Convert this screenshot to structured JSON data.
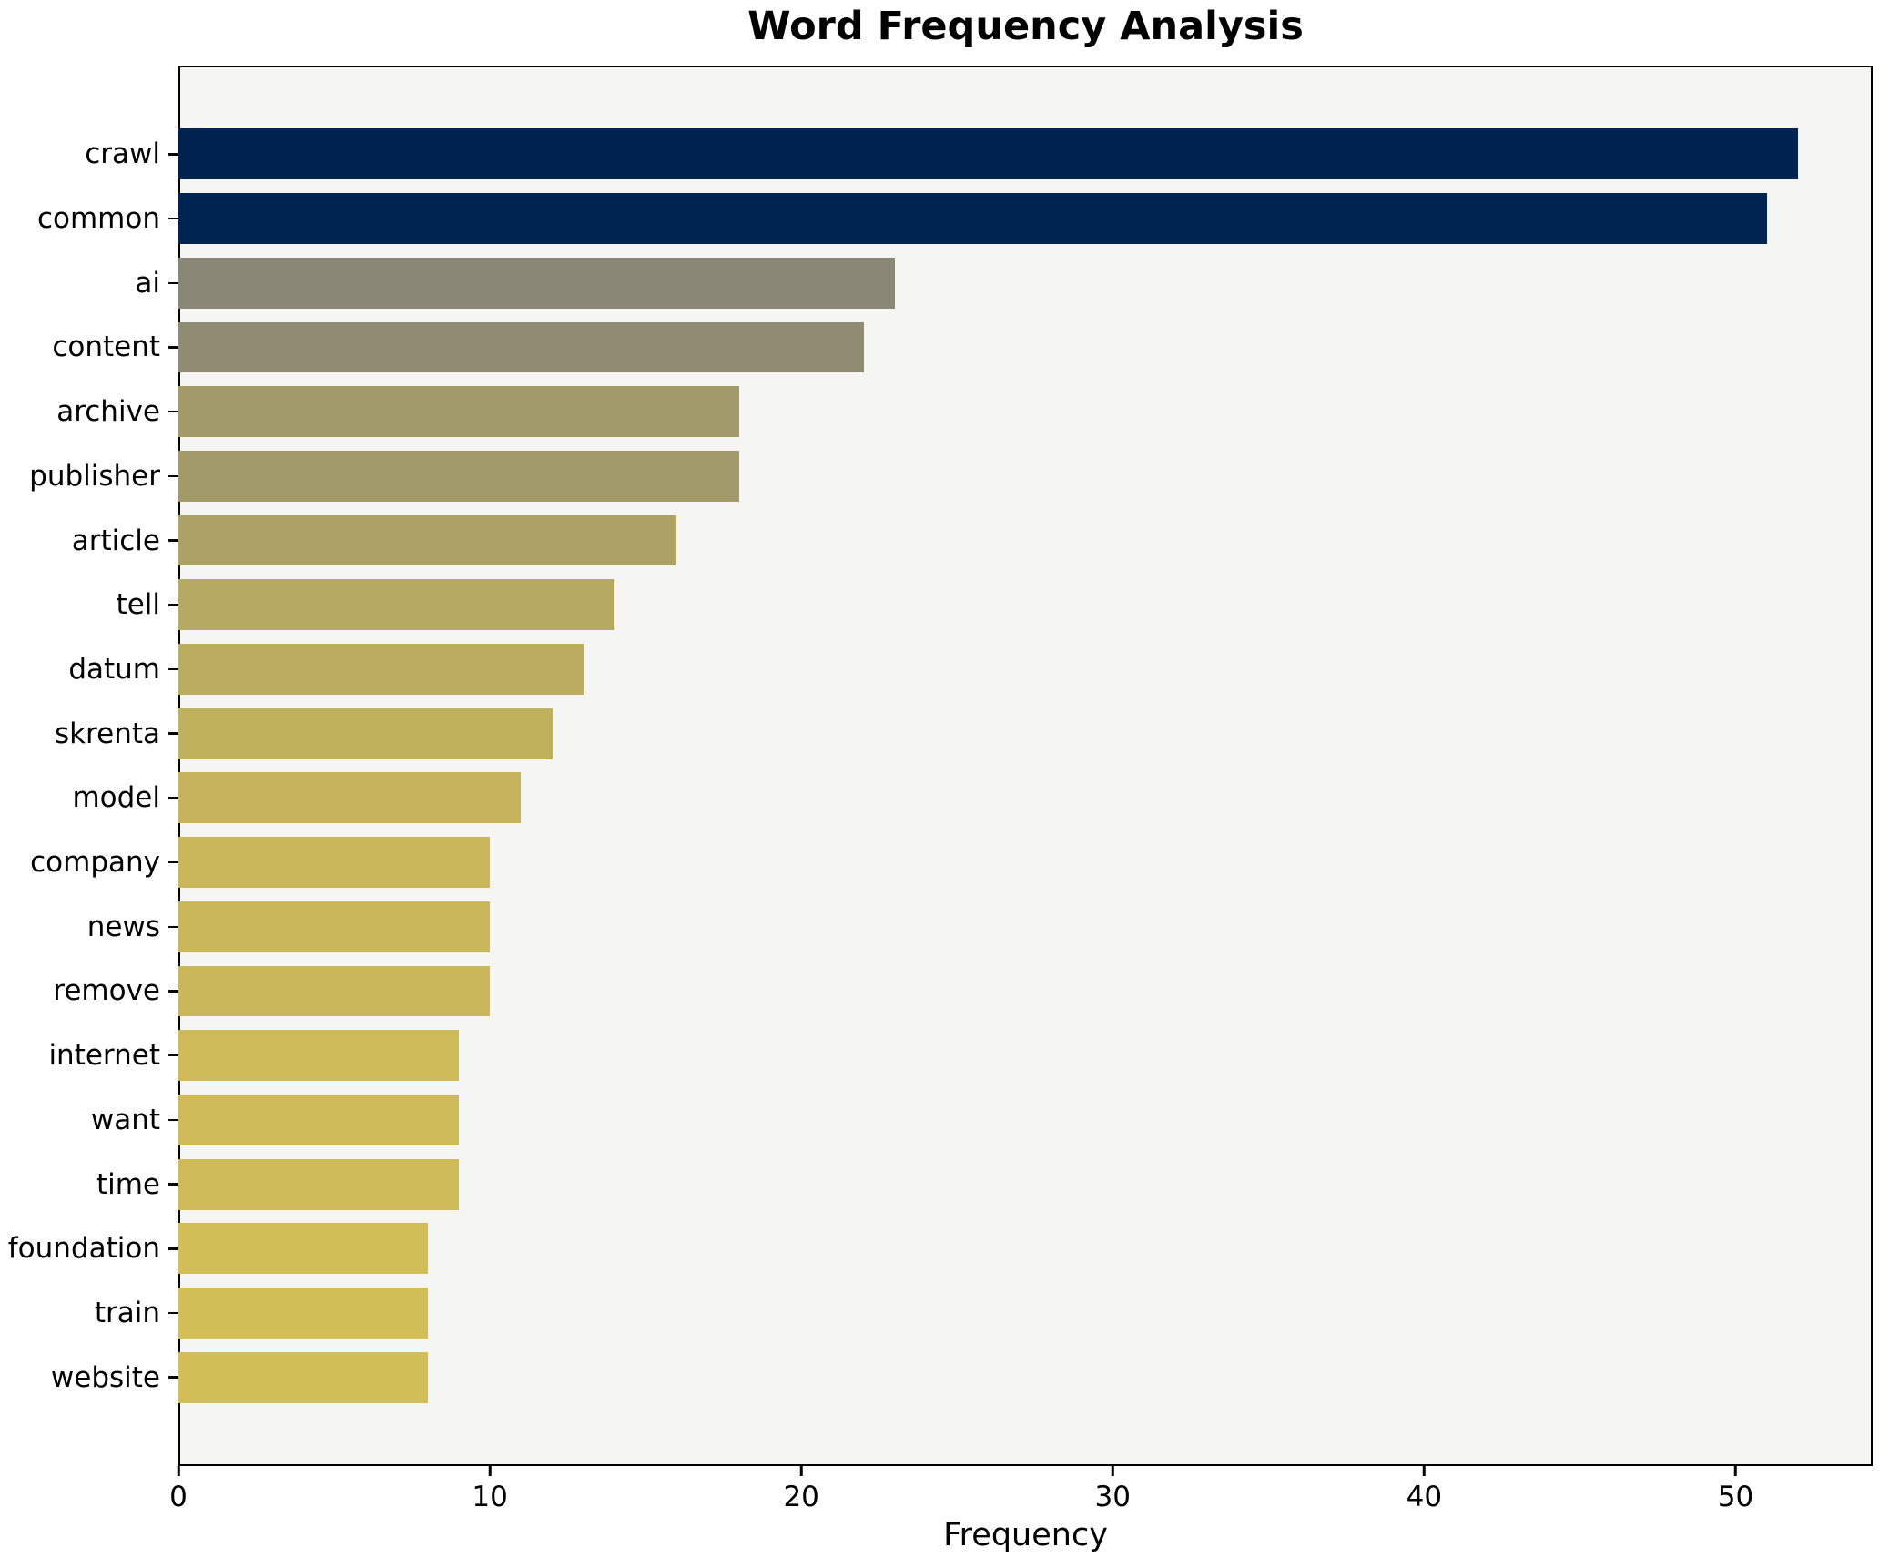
{
  "chart_data": {
    "type": "bar",
    "orientation": "horizontal",
    "title": "Word Frequency Analysis",
    "xlabel": "Frequency",
    "ylabel": "",
    "categories": [
      "crawl",
      "common",
      "ai",
      "content",
      "archive",
      "publisher",
      "article",
      "tell",
      "datum",
      "skrenta",
      "model",
      "company",
      "news",
      "remove",
      "internet",
      "want",
      "time",
      "foundation",
      "train",
      "website"
    ],
    "values": [
      52,
      51,
      23,
      22,
      18,
      18,
      16,
      14,
      13,
      12,
      11,
      10,
      10,
      10,
      9,
      9,
      9,
      8,
      8,
      8
    ],
    "bar_colors": [
      "#00224e",
      "#002452",
      "#8b8777",
      "#908c73",
      "#a39a69",
      "#a39a69",
      "#ada266",
      "#b6a961",
      "#bbad5f",
      "#c0b15d",
      "#c5b45b",
      "#c9b85a",
      "#c9b85a",
      "#c9b85a",
      "#cebb58",
      "#cebb58",
      "#cebb58",
      "#d3bf57",
      "#d3bf57",
      "#d3bf57"
    ],
    "xticks": [
      0,
      10,
      20,
      30,
      40,
      50
    ],
    "xlim": [
      0,
      54.4
    ],
    "grid": false,
    "legend_position": "none",
    "colormap": "cividis",
    "plot_background": "#f5f5f4",
    "figure_background": "#ffffff",
    "spine_color": "#000000"
  }
}
